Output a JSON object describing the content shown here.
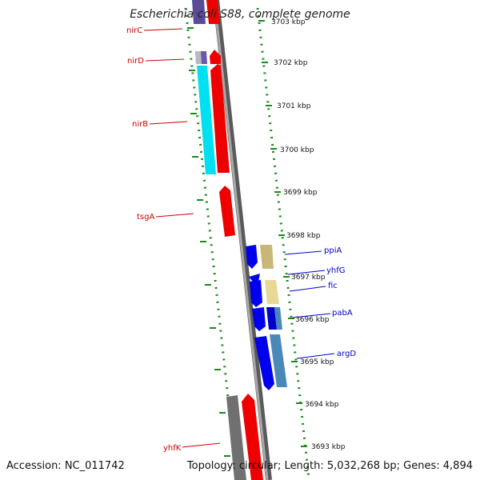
{
  "title": "Escherichia coli S88, complete genome",
  "footer": {
    "accession": "Accession: NC_011742",
    "topology": "Topology: circular; Length: 5,032,268 bp; Genes: 4,894"
  },
  "ticks": [
    {
      "label": "3703 kbp"
    },
    {
      "label": "3702 kbp"
    },
    {
      "label": "3701 kbp"
    },
    {
      "label": "3700 kbp"
    },
    {
      "label": "3699 kbp"
    },
    {
      "label": "3698 kbp"
    },
    {
      "label": "3697 kbp"
    },
    {
      "label": "3696 kbp"
    },
    {
      "label": "3695 kbp"
    },
    {
      "label": "3694 kbp"
    },
    {
      "label": "3693 kbp"
    }
  ],
  "genes": [
    {
      "name": "nirC",
      "strand": "left"
    },
    {
      "name": "nirD",
      "strand": "left"
    },
    {
      "name": "nirB",
      "strand": "left"
    },
    {
      "name": "tsgA",
      "strand": "left"
    },
    {
      "name": "yhfK",
      "strand": "left"
    },
    {
      "name": "ppiA",
      "strand": "right"
    },
    {
      "name": "yhfG",
      "strand": "right"
    },
    {
      "name": "fic",
      "strand": "right"
    },
    {
      "name": "pabA",
      "strand": "right"
    },
    {
      "name": "argD",
      "strand": "right"
    }
  ],
  "colors": {
    "backbone": "#8a8a8a",
    "forward_feature": "#ee0000",
    "reverse_feature": "#0000ee",
    "cyan_feature": "#00e0f0",
    "purple_feature": "#5a4a9a",
    "gray_feature": "#707070",
    "tan_feature": "#c8b878",
    "steel_feature": "#4a88b8",
    "dots": "#1a8a1a",
    "left_label": "#cc0000",
    "right_label": "#0000cc"
  }
}
